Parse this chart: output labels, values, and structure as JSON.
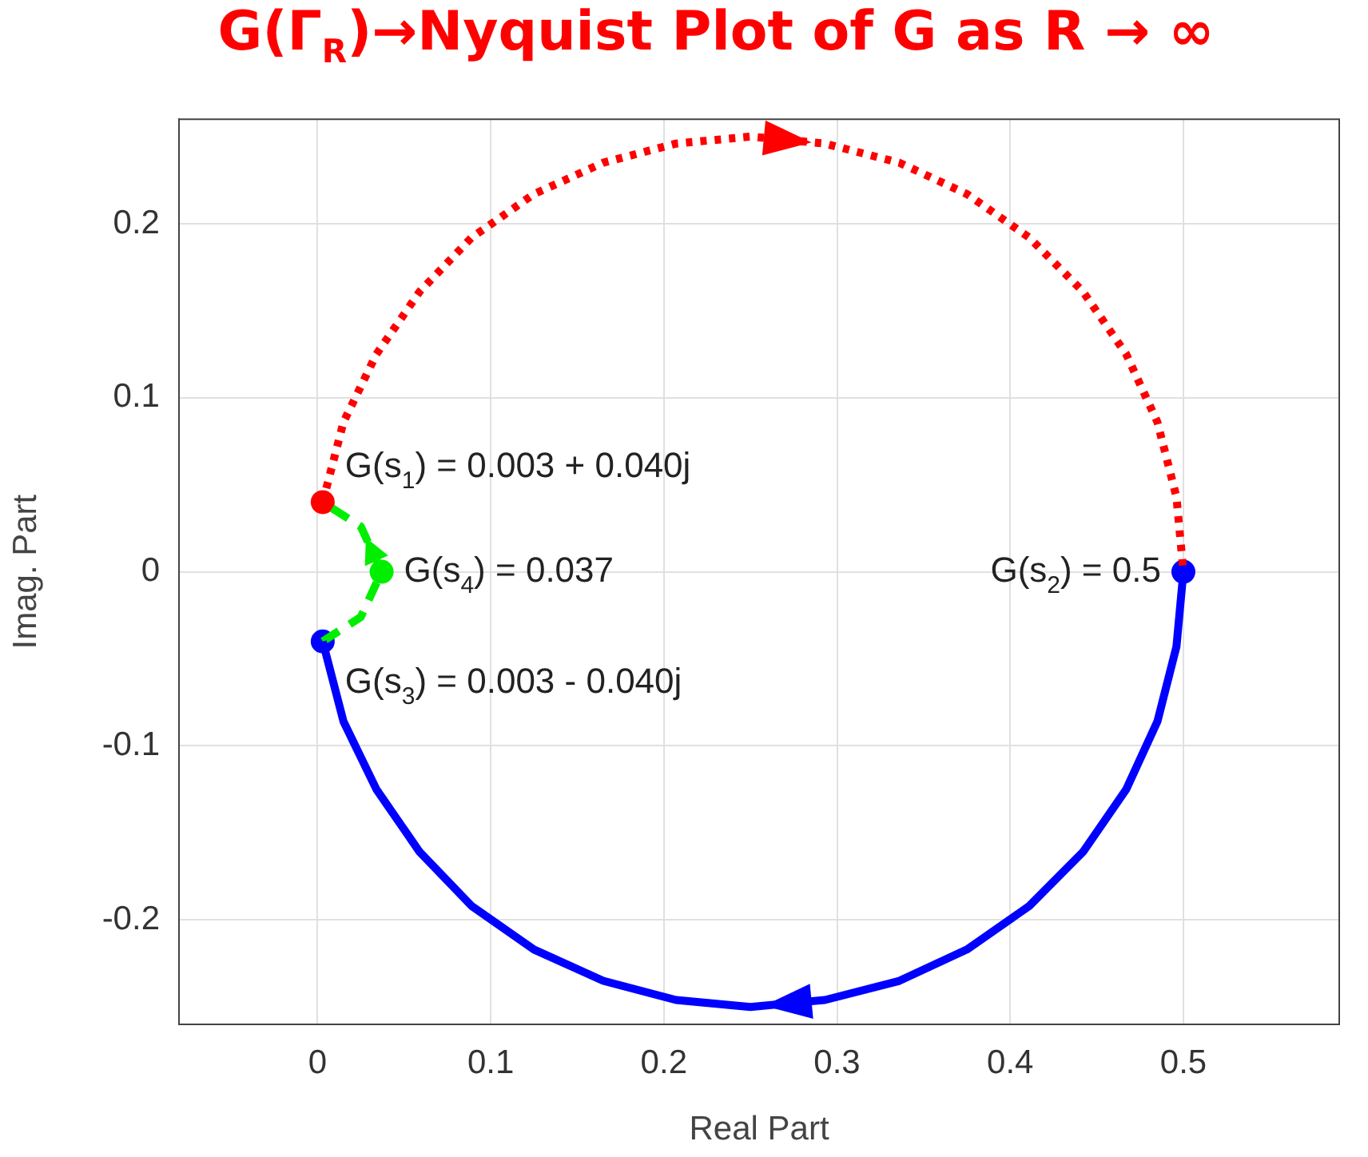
{
  "chart_data": {
    "type": "line",
    "title": "G(Γ$_{R}$)→Nyquist Plot of G as R → ∞",
    "xlabel": "Real Part",
    "ylabel": "Imag. Part",
    "xlim": [
      -0.08,
      0.59
    ],
    "ylim": [
      -0.26,
      0.26
    ],
    "xticks": [
      0,
      0.1,
      0.2,
      0.3,
      0.4,
      0.5
    ],
    "yticks": [
      -0.2,
      -0.1,
      0,
      0.1,
      0.2
    ],
    "grid": true,
    "legend": false,
    "series": [
      {
        "color": "#ff0000",
        "line_style": "dotted",
        "x": [
          0.003,
          0.015,
          0.034,
          0.059,
          0.089,
          0.125,
          0.165,
          0.207,
          0.25,
          0.293,
          0.336,
          0.375,
          0.411,
          0.442,
          0.467,
          0.485,
          0.496,
          0.5
        ],
        "values": [
          0.04,
          0.086,
          0.125,
          0.161,
          0.192,
          0.217,
          0.235,
          0.246,
          0.25,
          0.246,
          0.235,
          0.217,
          0.192,
          0.161,
          0.125,
          0.086,
          0.043,
          0
        ]
      },
      {
        "color": "#0000ff",
        "line_style": "solid",
        "x": [
          0.5,
          0.496,
          0.485,
          0.467,
          0.442,
          0.411,
          0.375,
          0.336,
          0.293,
          0.25,
          0.207,
          0.165,
          0.125,
          0.089,
          0.059,
          0.034,
          0.015,
          0.003
        ],
        "values": [
          0,
          -0.043,
          -0.086,
          -0.125,
          -0.161,
          -0.192,
          -0.217,
          -0.235,
          -0.246,
          -0.25,
          -0.246,
          -0.235,
          -0.217,
          -0.192,
          -0.161,
          -0.125,
          -0.086,
          -0.04
        ]
      },
      {
        "color": "#00ee00",
        "line_style": "dashed",
        "x": [
          0.003,
          0.025,
          0.037,
          0.025,
          0.003
        ],
        "values": [
          -0.04,
          -0.026,
          0,
          0.026,
          0.04
        ]
      },
      {
        "type": "scatter",
        "marker": "circle",
        "colors": [
          "#ff0000",
          "#0000ff",
          "#0000ff",
          "#00ee00"
        ],
        "x": [
          0.003,
          0.5,
          0.003,
          0.037
        ],
        "values": [
          0.04,
          0,
          -0.04,
          0
        ]
      }
    ],
    "annotations": [
      {
        "text": "G(s$_{1}$) = 0.003 + 0.040j",
        "x": 0.003,
        "y": 0.04
      },
      {
        "text": "G(s$_{2}$) = 0.5",
        "x": 0.5,
        "y": 0
      },
      {
        "text": "G(s$_{3}$) = 0.003 - 0.040j",
        "x": 0.003,
        "y": -0.04
      },
      {
        "text": "G(s$_{4}$) = 0.037",
        "x": 0.037,
        "y": 0
      }
    ]
  }
}
